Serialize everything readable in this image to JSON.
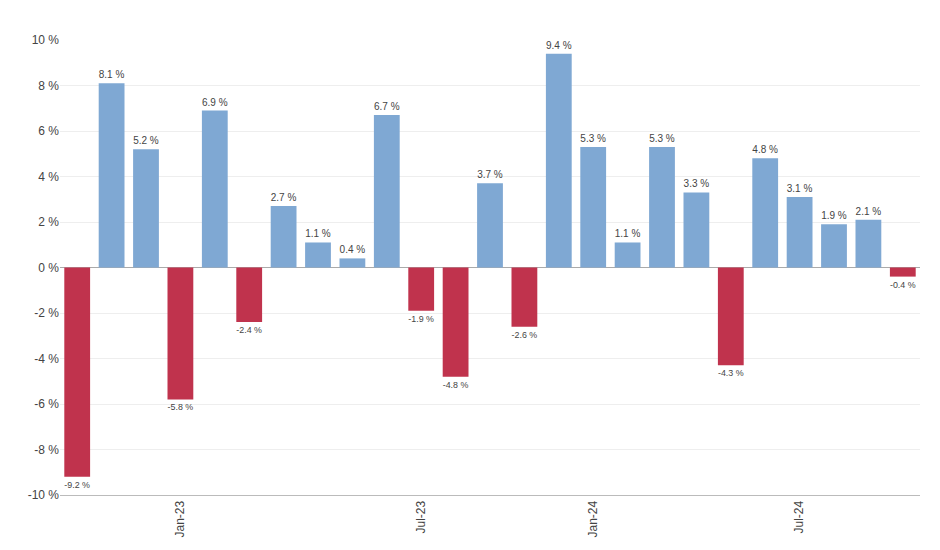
{
  "chart_data": {
    "type": "bar",
    "categories": [
      null,
      null,
      null,
      "Jan-23",
      null,
      null,
      null,
      null,
      null,
      null,
      "Jul-23",
      null,
      null,
      null,
      null,
      "Jan-24",
      null,
      null,
      null,
      null,
      null,
      "Jul-24",
      null,
      null,
      null
    ],
    "values": [
      -9.2,
      8.1,
      5.2,
      -5.8,
      6.9,
      -2.4,
      2.7,
      1.1,
      0.4,
      6.7,
      -1.9,
      -4.8,
      3.7,
      -2.6,
      9.4,
      5.3,
      1.1,
      5.3,
      3.3,
      -4.3,
      4.8,
      3.1,
      1.9,
      2.1,
      -0.4
    ],
    "value_labels": [
      "-9.2 %",
      "8.1 %",
      "5.2 %",
      "-5.8 %",
      "6.9 %",
      "-2.4 %",
      "2.7 %",
      "1.1 %",
      "0.4 %",
      "6.7 %",
      "-1.9 %",
      "-4.8 %",
      "3.7 %",
      "-2.6 %",
      "9.4 %",
      "5.3 %",
      "1.1 %",
      "5.3 %",
      "3.3 %",
      "-4.3 %",
      "4.8 %",
      "3.1 %",
      "1.9 %",
      "2.1 %",
      "-0.4 %"
    ],
    "colors": [
      "#c0334d",
      "#7fa8d3",
      "#7fa8d3",
      "#c0334d",
      "#7fa8d3",
      "#c0334d",
      "#7fa8d3",
      "#7fa8d3",
      "#7fa8d3",
      "#7fa8d3",
      "#c0334d",
      "#c0334d",
      "#7fa8d3",
      "#c0334d",
      "#7fa8d3",
      "#7fa8d3",
      "#7fa8d3",
      "#7fa8d3",
      "#7fa8d3",
      "#c0334d",
      "#7fa8d3",
      "#7fa8d3",
      "#7fa8d3",
      "#7fa8d3",
      "#c0334d"
    ],
    "ylim": [
      -10,
      10
    ],
    "yticks": [
      {
        "value": -10,
        "label": "-10 %"
      },
      {
        "value": -8,
        "label": "-8 %"
      },
      {
        "value": -6,
        "label": "-6 %"
      },
      {
        "value": -4,
        "label": "-4 %"
      },
      {
        "value": -2,
        "label": "-2 %"
      },
      {
        "value": 0,
        "label": "0 %"
      },
      {
        "value": 2,
        "label": "2 %"
      },
      {
        "value": 4,
        "label": "4 %"
      },
      {
        "value": 6,
        "label": "6 %"
      },
      {
        "value": 8,
        "label": "8 %"
      },
      {
        "value": 10,
        "label": "10 %"
      }
    ],
    "grid": true,
    "data_labels": true
  }
}
